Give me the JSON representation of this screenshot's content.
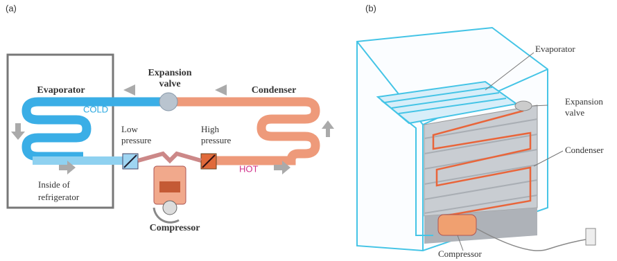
{
  "panel_a": {
    "tag": "(a)",
    "expansion_valve": [
      "Expansion",
      "valve"
    ],
    "evaporator": "Evaporator",
    "condenser": "Condenser",
    "cold": "COLD",
    "low_pressure": [
      "Low",
      "pressure"
    ],
    "high_pressure": [
      "High",
      "pressure"
    ],
    "hot": "HOT",
    "inside": [
      "Inside of",
      "refrigerator"
    ],
    "compressor": "Compressor"
  },
  "panel_b": {
    "tag": "(b)",
    "evaporator": "Evaporator",
    "expansion_valve": [
      "Expansion",
      "valve"
    ],
    "condenser": "Condenser",
    "compressor": "Compressor"
  }
}
